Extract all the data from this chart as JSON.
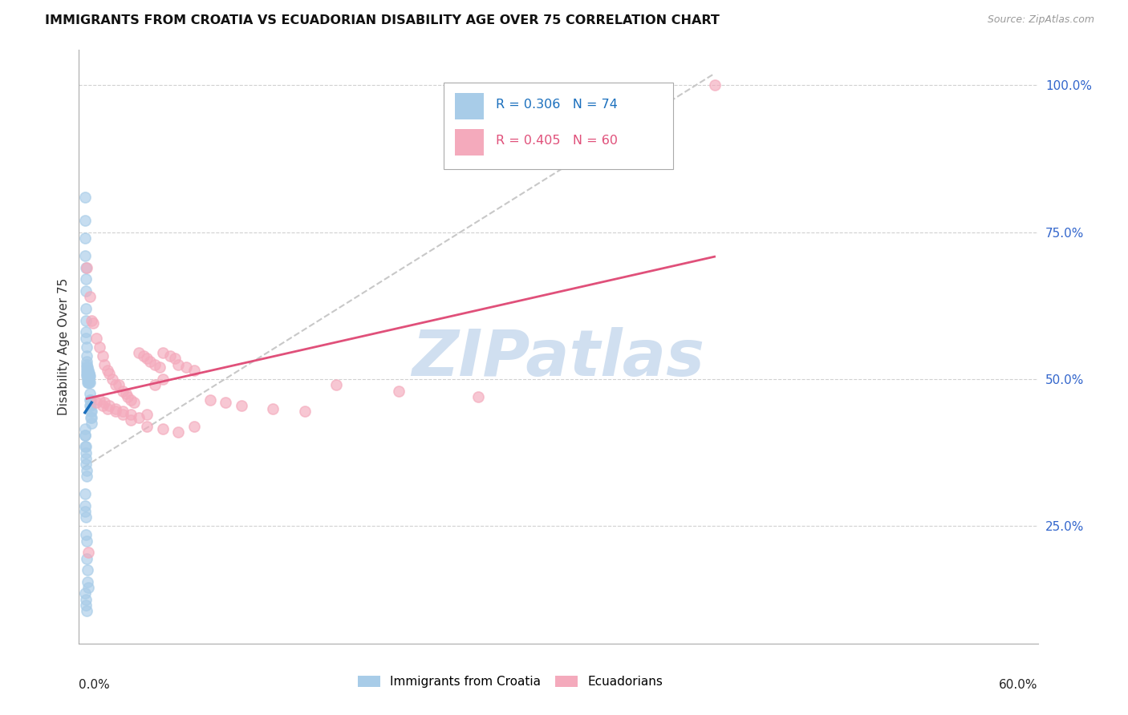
{
  "title": "IMMIGRANTS FROM CROATIA VS ECUADORIAN DISABILITY AGE OVER 75 CORRELATION CHART",
  "source": "Source: ZipAtlas.com",
  "ylabel": "Disability Age Over 75",
  "legend_croatia": {
    "R": 0.306,
    "N": 74
  },
  "legend_ecuador": {
    "R": 0.405,
    "N": 60
  },
  "xlim": [
    -0.003,
    0.605
  ],
  "ylim": [
    0.05,
    1.06
  ],
  "yticks": [
    0.25,
    0.5,
    0.75,
    1.0
  ],
  "ytick_labels": [
    "25.0%",
    "50.0%",
    "75.0%",
    "100.0%"
  ],
  "croatia_color": "#a8cce8",
  "ecuador_color": "#f4aabc",
  "croatia_line_color": "#1a6fbd",
  "ecuador_line_color": "#e0507a",
  "diagonal_color": "#c8c8c8",
  "watermark": "ZIPatlas",
  "watermark_color": "#d0dff0",
  "croatia_x": [
    0.0008,
    0.0008,
    0.001,
    0.001,
    0.0012,
    0.0012,
    0.0012,
    0.0012,
    0.0015,
    0.0015,
    0.0015,
    0.0018,
    0.0018,
    0.0018,
    0.002,
    0.002,
    0.002,
    0.002,
    0.002,
    0.0022,
    0.0022,
    0.0022,
    0.0025,
    0.0025,
    0.0025,
    0.0025,
    0.0028,
    0.0028,
    0.0028,
    0.003,
    0.003,
    0.003,
    0.003,
    0.0032,
    0.0032,
    0.0035,
    0.0035,
    0.0035,
    0.0038,
    0.0038,
    0.004,
    0.004,
    0.004,
    0.0042,
    0.0042,
    0.0045,
    0.0045,
    0.0048,
    0.005,
    0.005,
    0.0008,
    0.0008,
    0.001,
    0.001,
    0.0012,
    0.0012,
    0.0015,
    0.0015,
    0.0018,
    0.0018,
    0.0008,
    0.0008,
    0.001,
    0.0012,
    0.0015,
    0.0018,
    0.002,
    0.0022,
    0.0025,
    0.0028,
    0.001,
    0.0012,
    0.0015,
    0.0018
  ],
  "croatia_y": [
    0.81,
    0.77,
    0.74,
    0.71,
    0.69,
    0.67,
    0.65,
    0.62,
    0.6,
    0.58,
    0.57,
    0.555,
    0.54,
    0.53,
    0.525,
    0.52,
    0.515,
    0.51,
    0.505,
    0.52,
    0.51,
    0.5,
    0.515,
    0.51,
    0.505,
    0.495,
    0.51,
    0.505,
    0.495,
    0.515,
    0.51,
    0.505,
    0.495,
    0.51,
    0.5,
    0.51,
    0.505,
    0.495,
    0.505,
    0.495,
    0.475,
    0.465,
    0.455,
    0.465,
    0.445,
    0.455,
    0.435,
    0.445,
    0.425,
    0.435,
    0.415,
    0.405,
    0.405,
    0.385,
    0.385,
    0.375,
    0.365,
    0.355,
    0.345,
    0.335,
    0.305,
    0.285,
    0.275,
    0.265,
    0.235,
    0.225,
    0.195,
    0.175,
    0.155,
    0.145,
    0.135,
    0.125,
    0.115,
    0.105
  ],
  "ecuador_x": [
    0.002,
    0.004,
    0.005,
    0.006,
    0.008,
    0.01,
    0.012,
    0.013,
    0.015,
    0.016,
    0.018,
    0.02,
    0.022,
    0.025,
    0.027,
    0.028,
    0.03,
    0.032,
    0.035,
    0.038,
    0.04,
    0.042,
    0.045,
    0.048,
    0.05,
    0.055,
    0.058,
    0.06,
    0.065,
    0.07,
    0.01,
    0.013,
    0.016,
    0.02,
    0.025,
    0.03,
    0.035,
    0.04,
    0.045,
    0.05,
    0.008,
    0.012,
    0.015,
    0.02,
    0.025,
    0.03,
    0.04,
    0.05,
    0.06,
    0.07,
    0.08,
    0.09,
    0.1,
    0.12,
    0.14,
    0.16,
    0.2,
    0.25,
    0.4,
    0.003
  ],
  "ecuador_y": [
    0.69,
    0.64,
    0.6,
    0.595,
    0.57,
    0.555,
    0.54,
    0.525,
    0.515,
    0.51,
    0.5,
    0.49,
    0.49,
    0.48,
    0.475,
    0.47,
    0.465,
    0.46,
    0.545,
    0.54,
    0.535,
    0.53,
    0.525,
    0.52,
    0.545,
    0.54,
    0.535,
    0.525,
    0.52,
    0.515,
    0.465,
    0.46,
    0.455,
    0.45,
    0.445,
    0.44,
    0.435,
    0.44,
    0.49,
    0.5,
    0.46,
    0.455,
    0.45,
    0.445,
    0.44,
    0.43,
    0.42,
    0.415,
    0.41,
    0.42,
    0.465,
    0.46,
    0.455,
    0.45,
    0.445,
    0.49,
    0.48,
    0.47,
    1.0,
    0.205
  ]
}
